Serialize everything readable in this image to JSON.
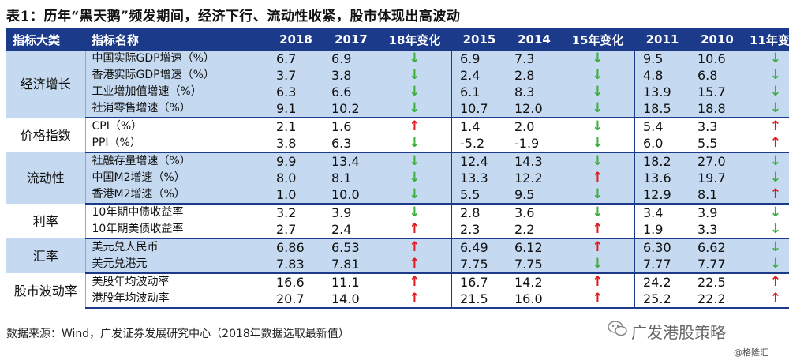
{
  "title": "表1：历年“黑天鹅”频发期间，经济下行、流动性收紧，股市体现出高波动",
  "headers": [
    "指标大类",
    "指标名称",
    "2018",
    "2017",
    "18年变化",
    "2015",
    "2014",
    "15年变化",
    "2011",
    "2010",
    "11年变化"
  ],
  "groups": [
    {
      "name": "经济增长",
      "rows": [
        {
          "name": "中国实际GDP增速（%）",
          "v": [
            "6.7",
            "6.9",
            "↓",
            "6.9",
            "7.3",
            "↓",
            "9.5",
            "10.6",
            "↓"
          ]
        },
        {
          "name": "香港实际GDP增速（%）",
          "v": [
            "3.7",
            "3.8",
            "↓",
            "2.4",
            "2.8",
            "↓",
            "4.8",
            "6.8",
            "↓"
          ]
        },
        {
          "name": "工业增加值增速（%）",
          "v": [
            "6.3",
            "6.6",
            "↓",
            "6.1",
            "8.3",
            "↓",
            "13.9",
            "15.7",
            "↓"
          ]
        },
        {
          "name": "社消零售增速（%）",
          "v": [
            "9.1",
            "10.2",
            "↓",
            "10.7",
            "12.0",
            "↓",
            "18.5",
            "18.8",
            "↓"
          ]
        }
      ]
    },
    {
      "name": "价格指数",
      "rows": [
        {
          "name": "CPI（%）",
          "v": [
            "2.1",
            "1.6",
            "↑",
            "1.4",
            "2.0",
            "↓",
            "5.4",
            "3.3",
            "↑"
          ]
        },
        {
          "name": "PPI（%）",
          "v": [
            "3.8",
            "6.3",
            "↓",
            "-5.2",
            "-1.9",
            "↓",
            "6.0",
            "5.5",
            "↑"
          ]
        }
      ]
    },
    {
      "name": "流动性",
      "rows": [
        {
          "name": "社融存量增速（%）",
          "v": [
            "9.9",
            "13.4",
            "↓",
            "12.4",
            "14.3",
            "↓",
            "18.2",
            "27.0",
            "↓"
          ]
        },
        {
          "name": "中国M2增速（%）",
          "v": [
            "8.0",
            "8.1",
            "↓",
            "13.3",
            "12.2",
            "↑",
            "13.6",
            "19.7",
            "↓"
          ]
        },
        {
          "name": "香港M2增速（%）",
          "v": [
            "1.0",
            "10.0",
            "↓",
            "5.5",
            "9.5",
            "↓",
            "12.9",
            "8.1",
            "↑"
          ]
        }
      ]
    },
    {
      "name": "利率",
      "rows": [
        {
          "name": "10年期中债收益率",
          "v": [
            "3.2",
            "3.9",
            "↓",
            "2.8",
            "3.6",
            "↓",
            "3.4",
            "3.9",
            "↓"
          ]
        },
        {
          "name": "10年期美债收益率",
          "v": [
            "2.7",
            "2.4",
            "↑",
            "2.3",
            "2.2",
            "↑",
            "1.9",
            "3.3",
            "↓"
          ]
        }
      ]
    },
    {
      "name": "汇率",
      "rows": [
        {
          "name": "美元兑人民币",
          "v": [
            "6.86",
            "6.53",
            "↑",
            "6.49",
            "6.12",
            "↑",
            "6.30",
            "6.62",
            "↓"
          ]
        },
        {
          "name": "美元兑港元",
          "v": [
            "7.83",
            "7.81",
            "↑",
            "7.75",
            "7.75",
            "↓",
            "7.77",
            "7.77",
            "↓"
          ]
        }
      ]
    },
    {
      "name": "股市波动率",
      "rows": [
        {
          "name": "美股年均波动率",
          "v": [
            "16.6",
            "11.1",
            "↑",
            "16.7",
            "14.2",
            "↑",
            "24.2",
            "22.5",
            "↑"
          ]
        },
        {
          "name": "港股年均波动率",
          "v": [
            "20.7",
            "14.0",
            "↑",
            "21.5",
            "16.0",
            "↑",
            "25.2",
            "22.2",
            "↑"
          ]
        }
      ]
    }
  ],
  "source": "数据来源：Wind，广发证券发展研究中心（2018年数据选取最新值）",
  "watermark_main": "广发港股策略",
  "watermark_sub": "@格隆汇",
  "colors": {
    "header": "#1b3a8a",
    "shade": "#c5daf1",
    "up": "#e0191e",
    "down": "#3cae3c"
  }
}
